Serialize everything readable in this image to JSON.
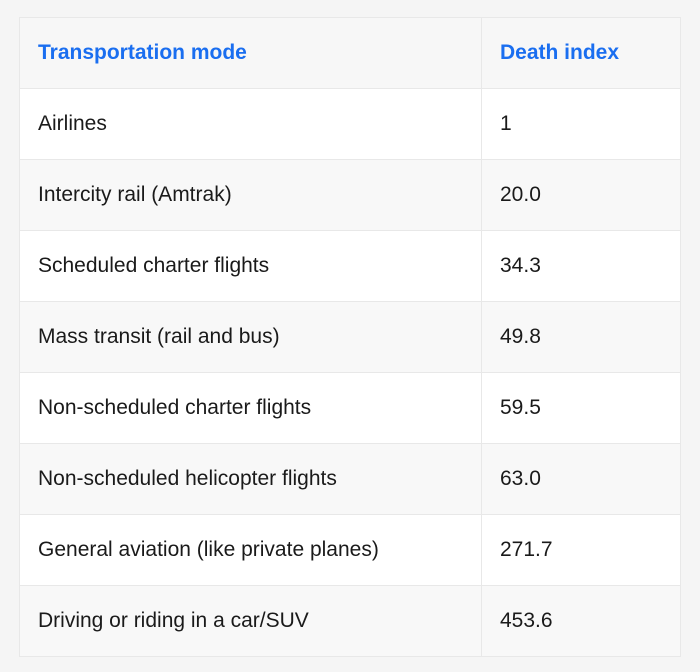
{
  "table": {
    "headers": [
      "Transportation mode",
      "Death index"
    ],
    "rows": [
      [
        "Airlines",
        "1"
      ],
      [
        "Intercity rail (Amtrak)",
        "20.0"
      ],
      [
        "Scheduled charter flights",
        "34.3"
      ],
      [
        "Mass transit (rail and bus)",
        "49.8"
      ],
      [
        "Non-scheduled charter flights",
        "59.5"
      ],
      [
        "Non-scheduled helicopter flights",
        "63.0"
      ],
      [
        "General aviation (like private planes)",
        "271.7"
      ],
      [
        "Driving or riding in a car/SUV",
        "453.6"
      ]
    ]
  },
  "colors": {
    "header_text": "#1a6ef0",
    "body_text": "#1a1a1a",
    "header_bg": "#f7f7f7",
    "stripe_bg": "#f8f8f8"
  }
}
